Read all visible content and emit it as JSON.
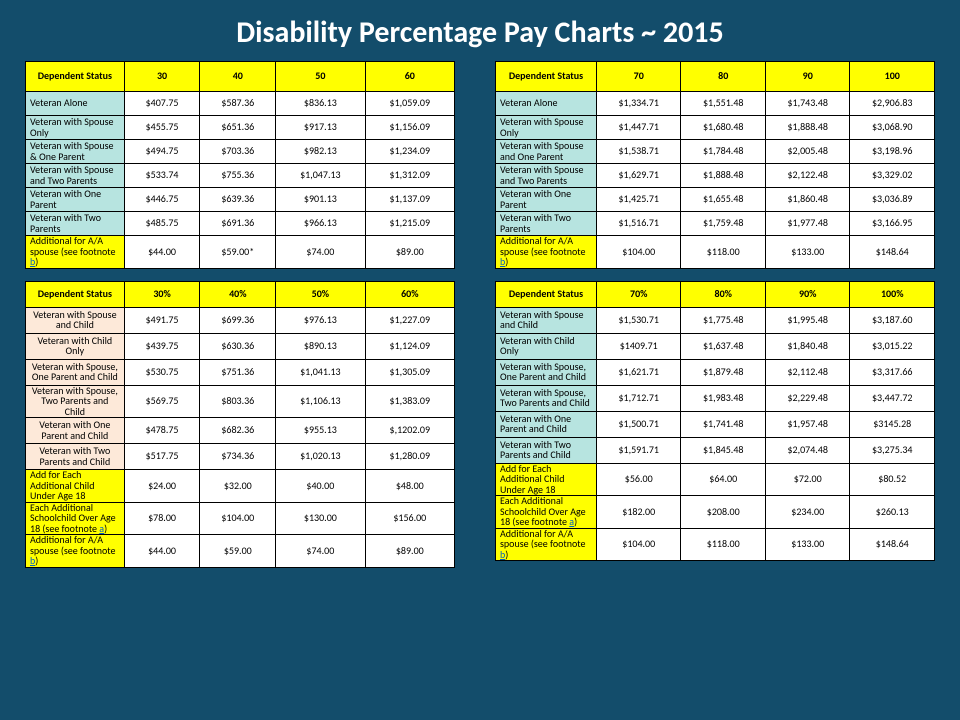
{
  "title": "Disability Percentage Pay Charts  ~ 2015",
  "footnote_a": "a",
  "footnote_b": "b",
  "colors": {
    "page_bg": "#134d6b",
    "header_bg": "#ffff00",
    "label_bg_teal": "#b7e4e0",
    "label_bg_peach": "#fde9d9",
    "addl_bg": "#ffff00",
    "border": "#000000",
    "title_color": "#ffffff",
    "link_color": "#0563c1"
  },
  "tables": {
    "t1": {
      "header_label": "Dependent Status",
      "cols": [
        "30",
        "40",
        "50",
        "60"
      ],
      "rows": [
        {
          "label": "Veteran Alone",
          "v": [
            "$407.75",
            "$587.36",
            "$836.13",
            "$1,059.09"
          ],
          "cls": "lab"
        },
        {
          "label": "Veteran with Spouse Only",
          "v": [
            "$455.75",
            "$651.36",
            "$917.13",
            "$1,156.09"
          ],
          "cls": "lab"
        },
        {
          "label": "Veteran with Spouse & One Parent",
          "v": [
            "$494.75",
            "$703.36",
            "$982.13",
            "$1,234.09"
          ],
          "cls": "lab"
        },
        {
          "label": "Veteran with Spouse and Two Parents",
          "v": [
            "$533.74",
            "$755.36",
            "$1,047.13",
            "$1,312.09"
          ],
          "cls": "lab"
        },
        {
          "label": "Veteran with One Parent",
          "v": [
            "$446.75",
            "$639.36",
            "$901.13",
            "$1,137.09"
          ],
          "cls": "lab"
        },
        {
          "label": "Veteran with Two Parents",
          "v": [
            "$485.75",
            "$691.36",
            "$966.13",
            "$1,215.09"
          ],
          "cls": "lab"
        },
        {
          "label": "Additional for A/A spouse (see footnote ",
          "fn": "b",
          "v": [
            "$44.00",
            "$59.00*",
            "$74.00",
            "$89.00"
          ],
          "cls": "add"
        }
      ]
    },
    "t2": {
      "header_label": "Dependent Status",
      "cols": [
        "30%",
        "40%",
        "50%",
        "60%"
      ],
      "rows": [
        {
          "label": "Veteran with Spouse and Child",
          "v": [
            "$491.75",
            "$699.36",
            "$976.13",
            "$1,227.09"
          ],
          "cls": "lab2"
        },
        {
          "label": "Veteran with Child Only",
          "v": [
            "$439.75",
            "$630.36",
            "$890.13",
            "$1,124.09"
          ],
          "cls": "lab2"
        },
        {
          "label": "Veteran with Spouse, One Parent and Child",
          "v": [
            "$530.75",
            "$751.36",
            "$1,041.13",
            "$1,305.09"
          ],
          "cls": "lab2"
        },
        {
          "label": "Veteran with Spouse, Two Parents and Child",
          "v": [
            "$569.75",
            "$803.36",
            "$1,106.13",
            "$1,383.09"
          ],
          "cls": "lab2"
        },
        {
          "label": "Veteran with One Parent and Child",
          "v": [
            "$478.75",
            "$682.36",
            "$955.13",
            "$,1202.09"
          ],
          "cls": "lab2"
        },
        {
          "label": "Veteran with Two Parents and Child",
          "v": [
            "$517.75",
            "$734.36",
            "$1,020.13",
            "$1,280.09"
          ],
          "cls": "lab2"
        },
        {
          "label": "Add for Each Additional Child Under Age 18",
          "v": [
            "$24.00",
            "$32.00",
            "$40.00",
            "$48.00"
          ],
          "cls": "add"
        },
        {
          "label": "Each Additional Schoolchild Over Age 18 (see footnote ",
          "fn": "a",
          "v": [
            "$78.00",
            "$104.00",
            "$130.00",
            "$156.00"
          ],
          "cls": "add"
        },
        {
          "label": "Additional for A/A spouse (see footnote ",
          "fn": "b",
          "v": [
            "$44.00",
            "$59.00",
            "$74.00",
            "$89.00"
          ],
          "cls": "add"
        }
      ]
    },
    "t3": {
      "header_label": "Dependent Status",
      "cols": [
        "70",
        "80",
        "90",
        "100"
      ],
      "rows": [
        {
          "label": "Veteran Alone",
          "v": [
            "$1,334.71",
            "$1,551.48",
            "$1,743.48",
            "$2,906.83"
          ],
          "cls": "lab"
        },
        {
          "label": "Veteran with Spouse Only",
          "v": [
            "$1,447.71",
            "$1,680.48",
            "$1,888.48",
            "$3,068.90"
          ],
          "cls": "lab"
        },
        {
          "label": "Veteran with Spouse and One Parent",
          "v": [
            "$1,538.71",
            "$1,784.48",
            "$2,005.48",
            "$3,198.96"
          ],
          "cls": "lab"
        },
        {
          "label": "Veteran with Spouse and Two Parents",
          "v": [
            "$1,629.71",
            "$1,888.48",
            "$2,122.48",
            "$3,329.02"
          ],
          "cls": "lab"
        },
        {
          "label": "Veteran with One Parent",
          "v": [
            "$1,425.71",
            "$1,655.48",
            "$1,860.48",
            "$3,036.89"
          ],
          "cls": "lab"
        },
        {
          "label": "Veteran with Two Parents",
          "v": [
            "$1,516.71",
            "$1,759.48",
            "$1,977.48",
            "$3,166.95"
          ],
          "cls": "lab"
        },
        {
          "label": "Additional for A/A spouse (see footnote ",
          "fn": "b",
          "v": [
            "$104.00",
            "$118.00",
            "$133.00",
            "$148.64"
          ],
          "cls": "add"
        }
      ]
    },
    "t4": {
      "header_label": "Dependent Status",
      "cols": [
        "70%",
        "80%",
        "90%",
        "100%"
      ],
      "rows": [
        {
          "label": "Veteran with Spouse and Child",
          "v": [
            "$1,530.71",
            "$1,775.48",
            "$1,995.48",
            "$3,187.60"
          ],
          "cls": "lab"
        },
        {
          "label": "Veteran with Child Only",
          "v": [
            "$1409.71",
            "$1,637.48",
            "$1,840.48",
            "$3,015.22"
          ],
          "cls": "lab"
        },
        {
          "label": "Veteran with Spouse, One Parent and Child",
          "v": [
            "$1,621.71",
            "$1,879.48",
            "$2,112.48",
            "$3,317.66"
          ],
          "cls": "lab"
        },
        {
          "label": "Veteran with Spouse, Two Parents and Child",
          "v": [
            "$1,712.71",
            "$1,983.48",
            "$2,229.48",
            "$3,447.72"
          ],
          "cls": "lab"
        },
        {
          "label": "Veteran with One Parent and Child",
          "v": [
            "$1,500.71",
            "$1,741.48",
            "$1,957.48",
            "$3145.28"
          ],
          "cls": "lab"
        },
        {
          "label": "Veteran with Two Parents and Child",
          "v": [
            "$1,591.71",
            "$1,845.48",
            "$2,074.48",
            "$3,275.34"
          ],
          "cls": "lab"
        },
        {
          "label": "Add for Each Additional Child Under Age 18",
          "v": [
            "$56.00",
            "$64.00",
            "$72.00",
            "$80.52"
          ],
          "cls": "add"
        },
        {
          "label": "Each Additional Schoolchild Over Age 18 (see footnote ",
          "fn": "a",
          "v": [
            "$182.00",
            "$208.00",
            "$234.00",
            "$260.13"
          ],
          "cls": "add"
        },
        {
          "label": "Additional for A/A spouse (see footnote ",
          "fn": "b",
          "v": [
            "$104.00",
            "$118.00",
            "$133.00",
            "$148.64"
          ],
          "cls": "add"
        }
      ]
    }
  }
}
